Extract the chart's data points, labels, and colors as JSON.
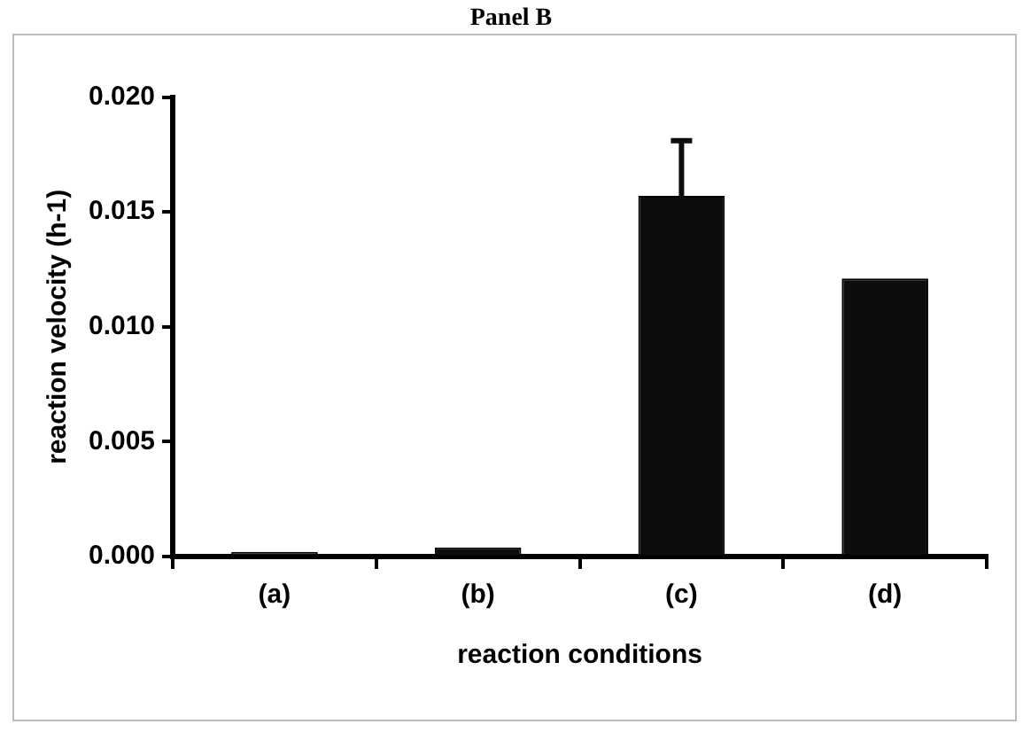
{
  "chart_data": {
    "type": "bar",
    "title": "Panel B",
    "xlabel": "reaction conditions",
    "ylabel": "reaction velocity (h-1)",
    "categories": [
      "(a)",
      "(b)",
      "(c)",
      "(d)"
    ],
    "values": [
      0.0002,
      0.0004,
      0.0157,
      0.0121
    ],
    "errors": [
      null,
      null,
      0.0024,
      null
    ],
    "color": "#0d0d0d",
    "ylim": [
      0,
      0.02
    ],
    "yticks": [
      {
        "value": 0,
        "label": "0.000"
      },
      {
        "value": 0.005,
        "label": "0.005"
      },
      {
        "value": 0.01,
        "label": "0.010"
      },
      {
        "value": 0.015,
        "label": "0.015"
      },
      {
        "value": 0.02,
        "label": "0.020"
      }
    ],
    "grid": false,
    "legend": false
  }
}
